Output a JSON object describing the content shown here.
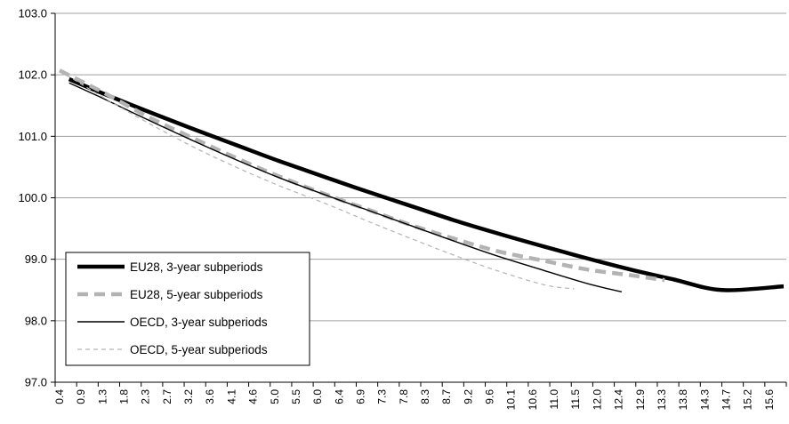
{
  "chart_data": {
    "type": "line",
    "title": "",
    "xlabel": "",
    "ylabel": "",
    "ylim": [
      97.0,
      103.0
    ],
    "yticks": [
      "97.0",
      "98.0",
      "99.0",
      "100.0",
      "101.0",
      "102.0",
      "103.0"
    ],
    "xlim": [
      0.4,
      15.6
    ],
    "xticks": [
      "0.4",
      "0.9",
      "1.3",
      "1.8",
      "2.3",
      "2.7",
      "3.2",
      "3.6",
      "4.1",
      "4.6",
      "5.0",
      "5.5",
      "6.0",
      "6.4",
      "6.9",
      "7.3",
      "7.8",
      "8.3",
      "8.7",
      "9.2",
      "9.6",
      "10.1",
      "10.6",
      "11.0",
      "11.5",
      "12.0",
      "12.4",
      "12.9",
      "13.3",
      "13.8",
      "14.3",
      "14.7",
      "15.2",
      "15.6"
    ],
    "grid": "horizontal",
    "legend_position": "bottom-left",
    "series": [
      {
        "name": "EU28, 3-year subperiods",
        "color": "#000000",
        "style": "solid-thick",
        "x": [
          0.6,
          1.3,
          2.3,
          3.2,
          4.1,
          5.0,
          6.0,
          6.9,
          7.8,
          8.7,
          9.6,
          10.6,
          11.5,
          12.4,
          13.3,
          14.3,
          15.6
        ],
        "y": [
          101.93,
          101.7,
          101.39,
          101.12,
          100.86,
          100.6,
          100.33,
          100.09,
          99.86,
          99.63,
          99.42,
          99.2,
          99.01,
          98.83,
          98.67,
          98.5,
          98.56
        ]
      },
      {
        "name": "EU28, 5-year subperiods",
        "color": "#b3b3b3",
        "style": "dashed-thick",
        "x": [
          0.4,
          1.3,
          2.3,
          3.2,
          4.1,
          5.0,
          6.0,
          6.9,
          7.8,
          8.7,
          9.6,
          10.6,
          11.5,
          12.4,
          13.1
        ],
        "y": [
          102.07,
          101.72,
          101.3,
          100.97,
          100.65,
          100.35,
          100.05,
          99.8,
          99.55,
          99.33,
          99.13,
          98.97,
          98.83,
          98.74,
          98.66
        ]
      },
      {
        "name": "OECD, 3-year subperiods",
        "color": "#000000",
        "style": "solid-thin",
        "x": [
          0.6,
          1.3,
          2.3,
          3.2,
          4.1,
          5.0,
          6.0,
          6.9,
          7.8,
          8.7,
          9.6,
          10.6,
          11.5,
          12.2
        ],
        "y": [
          101.87,
          101.62,
          101.25,
          100.93,
          100.62,
          100.33,
          100.04,
          99.79,
          99.54,
          99.29,
          99.05,
          98.81,
          98.6,
          98.47
        ]
      },
      {
        "name": "OECD, 5-year subperiods",
        "color": "#b3b3b3",
        "style": "dashed-thin",
        "x": [
          0.4,
          1.3,
          2.3,
          3.2,
          4.1,
          5.0,
          6.0,
          6.9,
          7.8,
          8.7,
          9.6,
          10.6,
          11.2
        ],
        "y": [
          102.07,
          101.64,
          101.2,
          100.83,
          100.5,
          100.2,
          99.9,
          99.61,
          99.33,
          99.06,
          98.81,
          98.58,
          98.52
        ]
      }
    ]
  }
}
